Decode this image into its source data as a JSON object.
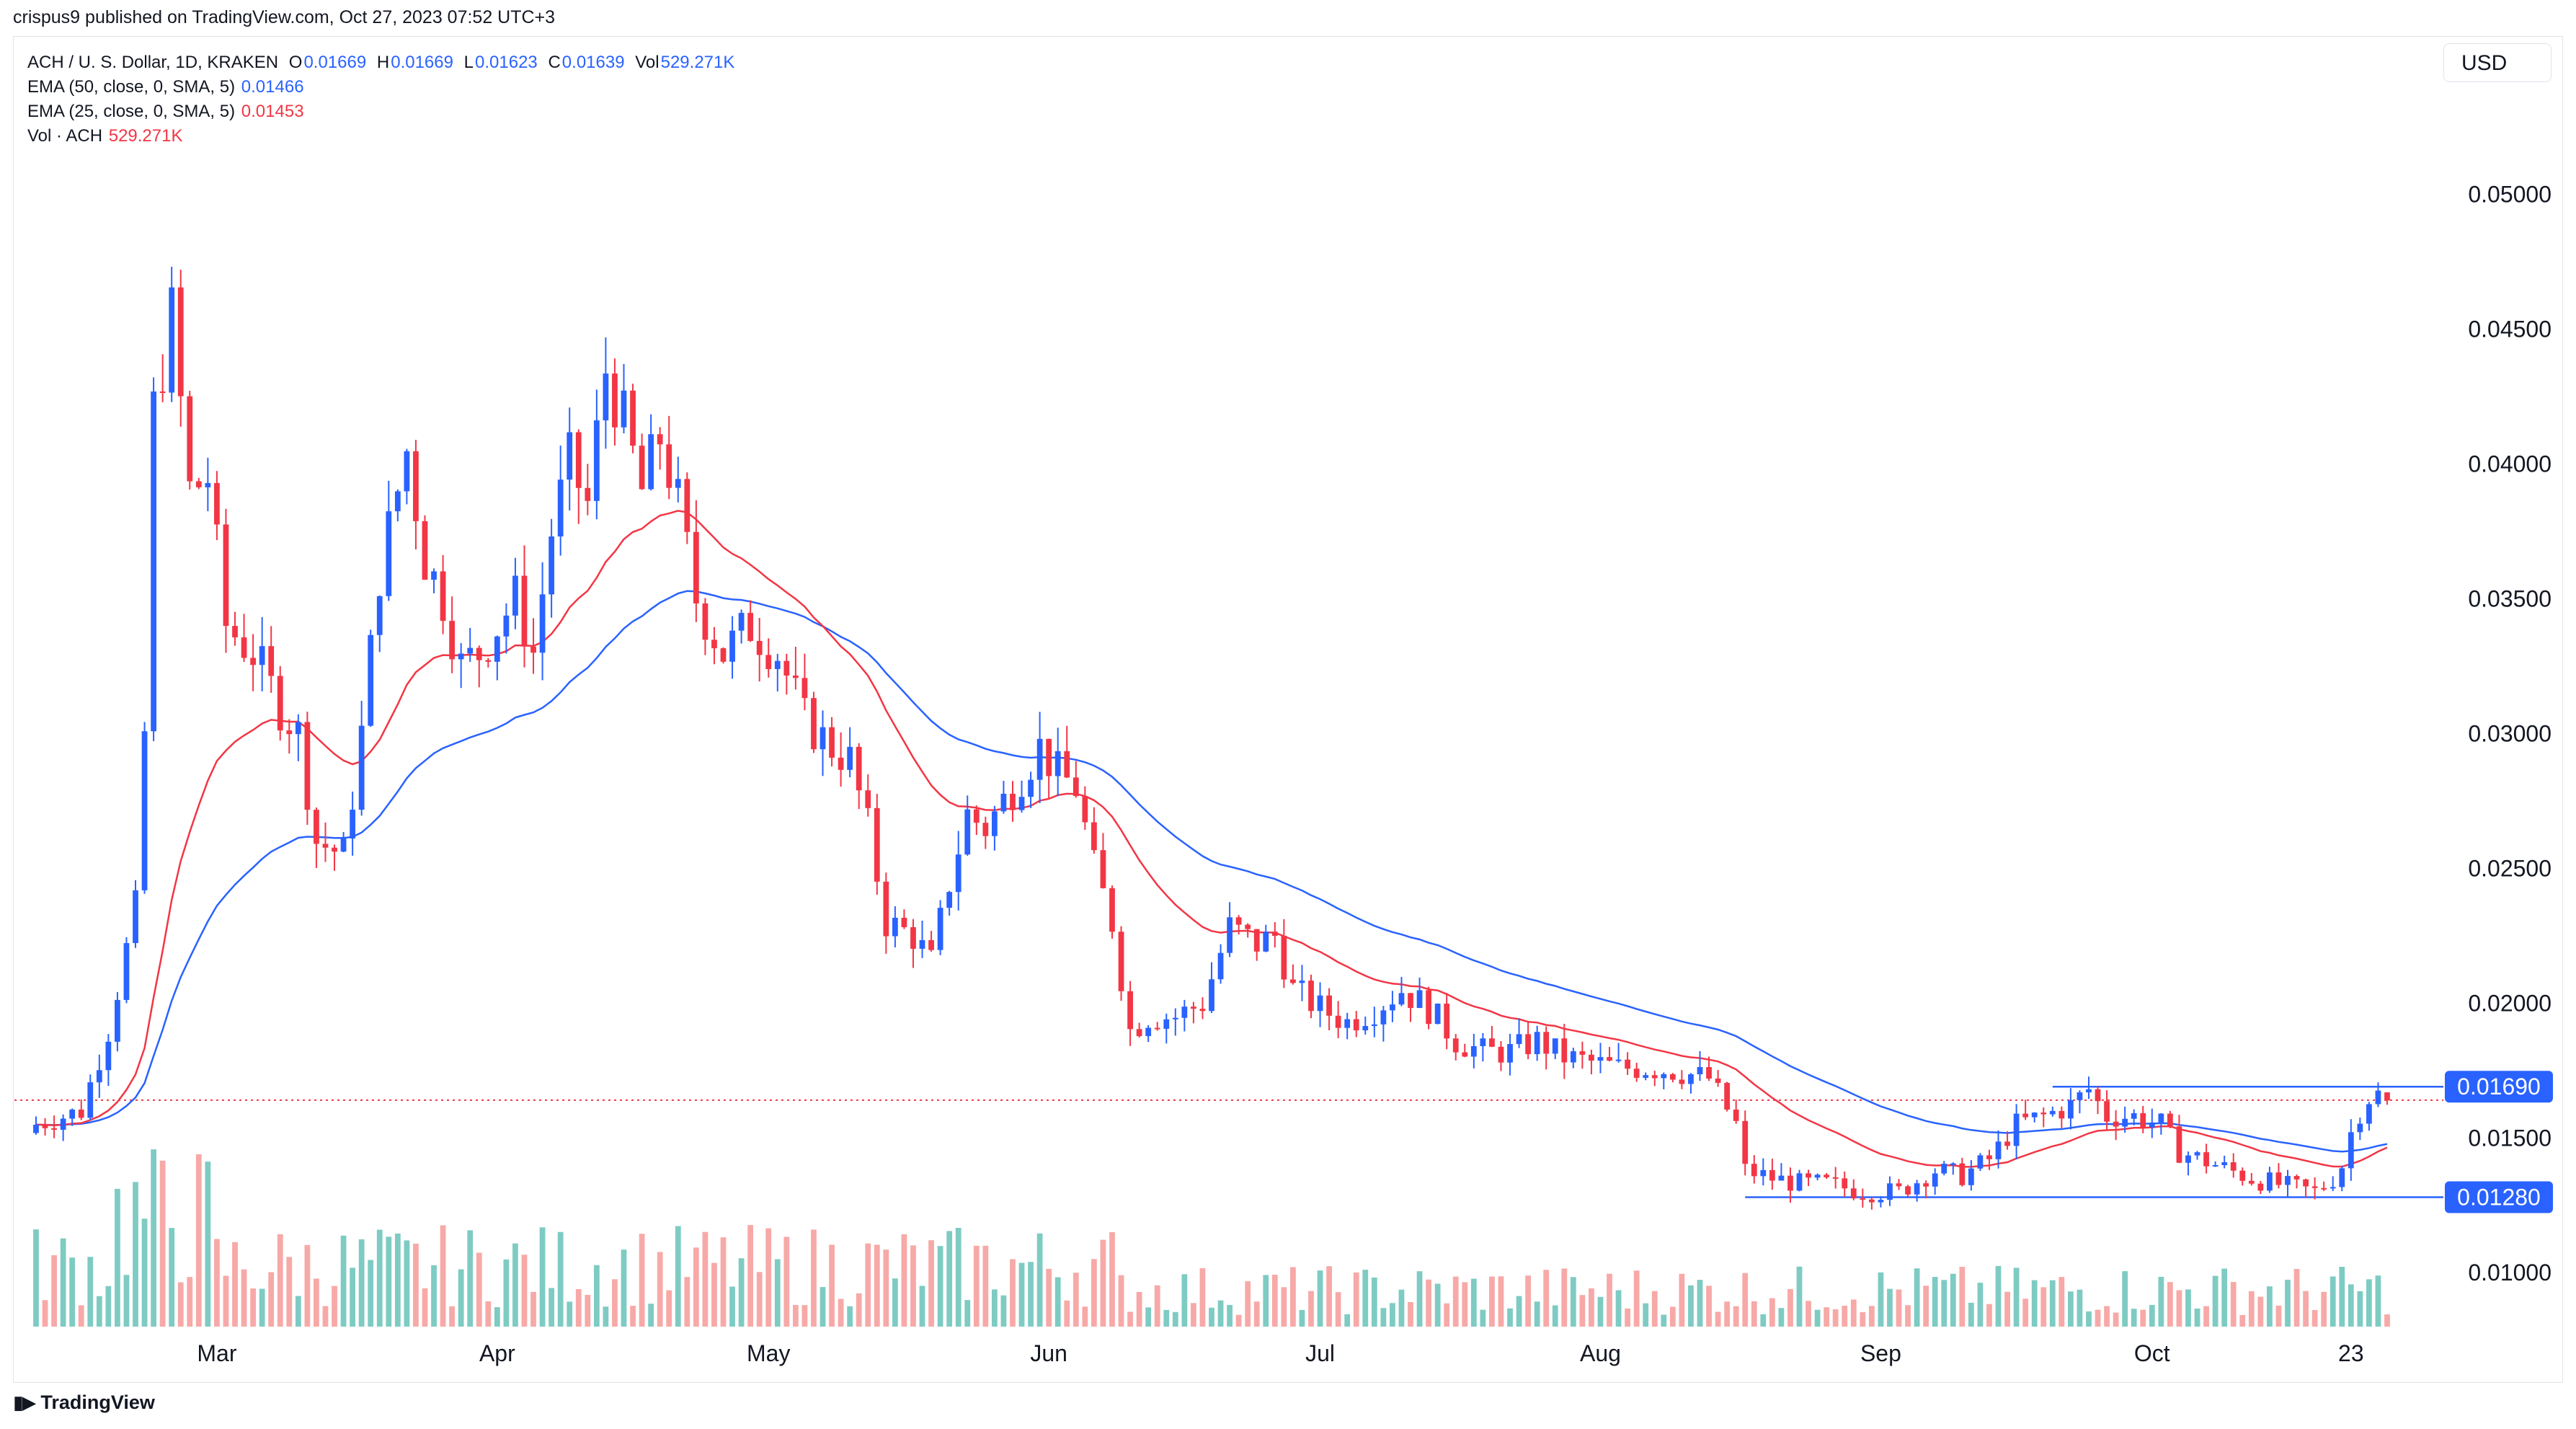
{
  "header": {
    "publish_line": "crispus9 published on TradingView.com, Oct 27, 2023 07:52 UTC+3"
  },
  "legend": {
    "symbol": "ACH / U. S. Dollar, 1D, KRAKEN",
    "ohlc": [
      {
        "key": "O",
        "value": "0.01669"
      },
      {
        "key": "H",
        "value": "0.01669"
      },
      {
        "key": "L",
        "value": "0.01623"
      },
      {
        "key": "C",
        "value": "0.01639"
      },
      {
        "key": "Vol",
        "value": "529.271K"
      }
    ],
    "ema50_label": "EMA (50, close, 0, SMA, 5)",
    "ema50_value": "0.01466",
    "ema25_label": "EMA (25, close, 0, SMA, 5)",
    "ema25_value": "0.01453",
    "vol_label": "Vol · ACH",
    "vol_value": "529.271K"
  },
  "toolbar": {
    "currency_label": "USD"
  },
  "footer": {
    "brand": "TradingView"
  },
  "colors": {
    "up": "#2962ff",
    "down": "#f23645",
    "vol_up": "#7ecbc3",
    "vol_down": "#f7a9a7",
    "ema50": "#2962ff",
    "ema25": "#f23645",
    "hline": "#2962ff",
    "last_price_line": "#f23645",
    "axis_text": "#131722",
    "grid": "#f0f3fa"
  },
  "chart_data": {
    "type": "candlestick",
    "title": "ACH / U. S. Dollar, 1D, KRAKEN",
    "xlabel": "",
    "ylabel": "",
    "y_ticks": [
      "0.05000",
      "0.04500",
      "0.04000",
      "0.03500",
      "0.03000",
      "0.02500",
      "0.02000",
      "0.01500",
      "0.01000"
    ],
    "ylim": [
      0.008,
      0.054
    ],
    "x_ticks": [
      {
        "label": "Mar",
        "date": "2023-03-01"
      },
      {
        "label": "Apr",
        "date": "2023-04-01"
      },
      {
        "label": "May",
        "date": "2023-05-01"
      },
      {
        "label": "Jun",
        "date": "2023-06-01"
      },
      {
        "label": "Jul",
        "date": "2023-07-01"
      },
      {
        "label": "Aug",
        "date": "2023-08-01"
      },
      {
        "label": "Sep",
        "date": "2023-09-01"
      },
      {
        "label": "Oct",
        "date": "2023-10-01"
      },
      {
        "label": "23",
        "date": "2023-10-23"
      }
    ],
    "date_range": [
      "2023-02-09",
      "2023-10-27"
    ],
    "close_anchors": [
      {
        "date": "2023-02-09",
        "close": 0.0155
      },
      {
        "date": "2023-02-14",
        "close": 0.016
      },
      {
        "date": "2023-02-17",
        "close": 0.019
      },
      {
        "date": "2023-02-20",
        "close": 0.0235
      },
      {
        "date": "2023-02-21",
        "close": 0.03
      },
      {
        "date": "2023-02-22",
        "close": 0.042
      },
      {
        "date": "2023-02-24",
        "close": 0.0455
      },
      {
        "date": "2023-02-26",
        "close": 0.039
      },
      {
        "date": "2023-02-28",
        "close": 0.0395
      },
      {
        "date": "2023-03-02",
        "close": 0.034
      },
      {
        "date": "2023-03-05",
        "close": 0.033
      },
      {
        "date": "2023-03-08",
        "close": 0.031
      },
      {
        "date": "2023-03-10",
        "close": 0.03
      },
      {
        "date": "2023-03-12",
        "close": 0.026
      },
      {
        "date": "2023-03-15",
        "close": 0.0255
      },
      {
        "date": "2023-03-17",
        "close": 0.03
      },
      {
        "date": "2023-03-19",
        "close": 0.036
      },
      {
        "date": "2023-03-22",
        "close": 0.0405
      },
      {
        "date": "2023-03-24",
        "close": 0.0365
      },
      {
        "date": "2023-03-26",
        "close": 0.035
      },
      {
        "date": "2023-03-28",
        "close": 0.0325
      },
      {
        "date": "2023-03-30",
        "close": 0.033
      },
      {
        "date": "2023-04-01",
        "close": 0.034
      },
      {
        "date": "2023-04-03",
        "close": 0.035
      },
      {
        "date": "2023-04-05",
        "close": 0.033
      },
      {
        "date": "2023-04-07",
        "close": 0.0375
      },
      {
        "date": "2023-04-09",
        "close": 0.04
      },
      {
        "date": "2023-04-11",
        "close": 0.0385
      },
      {
        "date": "2023-04-13",
        "close": 0.0435
      },
      {
        "date": "2023-04-15",
        "close": 0.0415
      },
      {
        "date": "2023-04-17",
        "close": 0.039
      },
      {
        "date": "2023-04-19",
        "close": 0.041
      },
      {
        "date": "2023-04-21",
        "close": 0.0385
      },
      {
        "date": "2023-04-23",
        "close": 0.035
      },
      {
        "date": "2023-04-26",
        "close": 0.033
      },
      {
        "date": "2023-04-29",
        "close": 0.034
      },
      {
        "date": "2023-05-02",
        "close": 0.033
      },
      {
        "date": "2023-05-05",
        "close": 0.0305
      },
      {
        "date": "2023-05-08",
        "close": 0.0295
      },
      {
        "date": "2023-05-10",
        "close": 0.029
      },
      {
        "date": "2023-05-12",
        "close": 0.0265
      },
      {
        "date": "2023-05-14",
        "close": 0.023
      },
      {
        "date": "2023-05-17",
        "close": 0.0225
      },
      {
        "date": "2023-05-19",
        "close": 0.0215
      },
      {
        "date": "2023-05-21",
        "close": 0.0245
      },
      {
        "date": "2023-05-23",
        "close": 0.027
      },
      {
        "date": "2023-05-25",
        "close": 0.0265
      },
      {
        "date": "2023-05-27",
        "close": 0.0275
      },
      {
        "date": "2023-05-29",
        "close": 0.0285
      },
      {
        "date": "2023-05-31",
        "close": 0.0295
      },
      {
        "date": "2023-06-02",
        "close": 0.0285
      },
      {
        "date": "2023-06-04",
        "close": 0.028
      },
      {
        "date": "2023-06-06",
        "close": 0.025
      },
      {
        "date": "2023-06-08",
        "close": 0.023
      },
      {
        "date": "2023-06-10",
        "close": 0.019
      },
      {
        "date": "2023-06-12",
        "close": 0.0195
      },
      {
        "date": "2023-06-15",
        "close": 0.0195
      },
      {
        "date": "2023-06-18",
        "close": 0.02
      },
      {
        "date": "2023-06-21",
        "close": 0.0228
      },
      {
        "date": "2023-06-24",
        "close": 0.0222
      },
      {
        "date": "2023-06-26",
        "close": 0.0225
      },
      {
        "date": "2023-06-28",
        "close": 0.0205
      },
      {
        "date": "2023-07-01",
        "close": 0.0198
      },
      {
        "date": "2023-07-04",
        "close": 0.0193
      },
      {
        "date": "2023-07-07",
        "close": 0.0198
      },
      {
        "date": "2023-07-10",
        "close": 0.0205
      },
      {
        "date": "2023-07-13",
        "close": 0.0198
      },
      {
        "date": "2023-07-16",
        "close": 0.0186
      },
      {
        "date": "2023-07-19",
        "close": 0.0182
      },
      {
        "date": "2023-07-22",
        "close": 0.0182
      },
      {
        "date": "2023-07-25",
        "close": 0.0186
      },
      {
        "date": "2023-07-28",
        "close": 0.018
      },
      {
        "date": "2023-07-31",
        "close": 0.0178
      },
      {
        "date": "2023-08-03",
        "close": 0.0176
      },
      {
        "date": "2023-08-06",
        "close": 0.0176
      },
      {
        "date": "2023-08-09",
        "close": 0.0175
      },
      {
        "date": "2023-08-13",
        "close": 0.0172
      },
      {
        "date": "2023-08-16",
        "close": 0.0155
      },
      {
        "date": "2023-08-17",
        "close": 0.0138
      },
      {
        "date": "2023-08-20",
        "close": 0.0135
      },
      {
        "date": "2023-08-23",
        "close": 0.0133
      },
      {
        "date": "2023-08-26",
        "close": 0.0133
      },
      {
        "date": "2023-08-30",
        "close": 0.013
      },
      {
        "date": "2023-09-03",
        "close": 0.013
      },
      {
        "date": "2023-09-07",
        "close": 0.0138
      },
      {
        "date": "2023-09-10",
        "close": 0.0136
      },
      {
        "date": "2023-09-13",
        "close": 0.0142
      },
      {
        "date": "2023-09-16",
        "close": 0.0155
      },
      {
        "date": "2023-09-19",
        "close": 0.0158
      },
      {
        "date": "2023-09-22",
        "close": 0.0162
      },
      {
        "date": "2023-09-24",
        "close": 0.0168
      },
      {
        "date": "2023-09-26",
        "close": 0.0158
      },
      {
        "date": "2023-09-29",
        "close": 0.0158
      },
      {
        "date": "2023-10-02",
        "close": 0.0155
      },
      {
        "date": "2023-10-04",
        "close": 0.0145
      },
      {
        "date": "2023-10-08",
        "close": 0.014
      },
      {
        "date": "2023-10-12",
        "close": 0.0135
      },
      {
        "date": "2023-10-16",
        "close": 0.0132
      },
      {
        "date": "2023-10-19",
        "close": 0.013
      },
      {
        "date": "2023-10-21",
        "close": 0.0135
      },
      {
        "date": "2023-10-22",
        "close": 0.014
      },
      {
        "date": "2023-10-23",
        "close": 0.0152
      },
      {
        "date": "2023-10-24",
        "close": 0.016
      },
      {
        "date": "2023-10-25",
        "close": 0.0165
      },
      {
        "date": "2023-10-26",
        "close": 0.0166
      },
      {
        "date": "2023-10-27",
        "close": 0.0164
      }
    ],
    "last_bar": {
      "open": 0.01669,
      "high": 0.01669,
      "low": 0.01623,
      "close": 0.01639,
      "volume": "529.271K"
    },
    "ema50_last": 0.01466,
    "ema25_last": 0.01453,
    "horizontal_lines": [
      {
        "value": 0.0169,
        "label": "0.01690",
        "from": "2023-09-20"
      },
      {
        "value": 0.0128,
        "label": "0.01280",
        "from": "2023-08-17"
      }
    ],
    "last_price_marker": 0.0164,
    "grid": false,
    "series": [
      {
        "name": "EMA (50, close, 0, SMA, 5)",
        "last": 0.01466
      },
      {
        "name": "EMA (25, close, 0, SMA, 5)",
        "last": 0.01453
      },
      {
        "name": "Vol · ACH",
        "last": "529.271K"
      }
    ]
  }
}
